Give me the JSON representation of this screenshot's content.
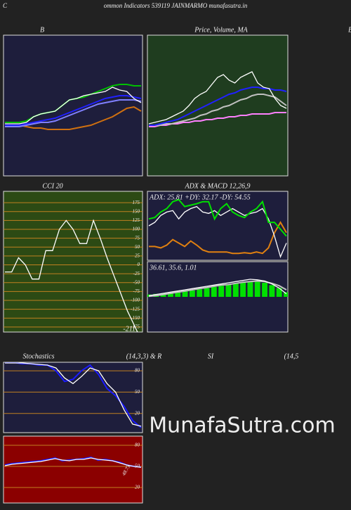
{
  "header": {
    "corner": "C",
    "page_title": "ommon  Indicators 539119 JAINMARMO munafasutra.in",
    "right_edge": "B",
    "watermark": "MunafaSutra.com"
  },
  "chart_data": [
    {
      "type": "line",
      "title": "B",
      "ylim": [
        0,
        100
      ],
      "series": [
        {
          "color": "#00c000",
          "values": [
            38,
            38,
            38,
            39,
            42,
            44,
            45,
            46,
            50,
            54,
            55,
            56,
            58,
            60,
            62,
            64,
            65,
            65,
            64,
            64
          ]
        },
        {
          "color": "#d07010",
          "values": [
            36,
            36,
            36,
            35,
            34,
            34,
            33,
            33,
            33,
            33,
            34,
            35,
            36,
            38,
            40,
            42,
            45,
            48,
            49,
            46
          ]
        },
        {
          "color": "#2020ff",
          "values": [
            36,
            36,
            36,
            37,
            38,
            39,
            40,
            41,
            43,
            45,
            47,
            49,
            51,
            53,
            55,
            56,
            57,
            57,
            56,
            55
          ]
        },
        {
          "color": "#8080ff",
          "values": [
            35,
            35,
            35,
            36,
            37,
            38,
            38,
            39,
            41,
            43,
            45,
            47,
            49,
            51,
            52,
            53,
            54,
            54,
            54,
            53
          ]
        },
        {
          "color": "#ffffff",
          "values": [
            37,
            37,
            37,
            38,
            42,
            44,
            45,
            46,
            50,
            54,
            55,
            57,
            58,
            59,
            60,
            63,
            61,
            60,
            55,
            52
          ]
        }
      ]
    },
    {
      "type": "line",
      "title": "Price, Volume, MA",
      "ylim": [
        0,
        100
      ],
      "series": [
        {
          "color": "#ff80ff",
          "values": [
            35,
            35,
            36,
            36,
            37,
            37,
            38,
            38,
            39,
            39,
            40,
            40,
            41,
            41,
            42,
            42,
            43,
            43,
            44,
            44,
            44,
            44,
            45,
            45,
            45
          ]
        },
        {
          "color": "#c0c0c0",
          "values": [
            36,
            36,
            36,
            37,
            37,
            38,
            39,
            40,
            41,
            43,
            44,
            46,
            47,
            49,
            50,
            52,
            54,
            55,
            57,
            58,
            58,
            57,
            56,
            53,
            50
          ]
        },
        {
          "color": "#2020ff",
          "values": [
            36,
            36,
            37,
            38,
            39,
            40,
            42,
            44,
            46,
            48,
            50,
            52,
            54,
            56,
            58,
            59,
            61,
            62,
            63,
            63,
            62,
            62,
            61,
            61,
            60
          ]
        },
        {
          "color": "#ffffff",
          "values": [
            37,
            38,
            39,
            40,
            42,
            44,
            46,
            50,
            55,
            58,
            60,
            65,
            70,
            72,
            68,
            66,
            70,
            72,
            74,
            66,
            63,
            62,
            55,
            50,
            48
          ]
        }
      ]
    },
    {
      "type": "line",
      "title": "CCI 20",
      "ylim": [
        -189,
        207
      ],
      "yticks": [
        175,
        150,
        125,
        100,
        75,
        50,
        25,
        0,
        -25,
        -50,
        -75,
        -100,
        -125,
        -150,
        -175
      ],
      "annotation": -211,
      "series": [
        {
          "color": "#ffffff",
          "values": [
            -20,
            -20,
            20,
            0,
            -40,
            -40,
            40,
            40,
            100,
            125,
            100,
            60,
            60,
            125,
            75,
            20,
            -30,
            -80,
            -130,
            -170,
            -211
          ]
        }
      ]
    },
    {
      "type": "line",
      "title": "ADX  & MACD 12,26,9",
      "ylim": [
        0,
        100
      ],
      "annotation": "ADX: 25.81 +DY: 32.17 -DY: 54.55",
      "series": [
        {
          "color": "#e08010",
          "values": [
            20,
            20,
            18,
            22,
            30,
            25,
            20,
            28,
            22,
            15,
            12,
            12,
            12,
            12,
            10,
            10,
            11,
            10,
            12,
            10,
            18,
            40,
            55,
            40
          ]
        },
        {
          "color": "#ffffff",
          "values": [
            50,
            55,
            65,
            70,
            72,
            60,
            70,
            75,
            78,
            70,
            68,
            72,
            65,
            70,
            75,
            70,
            65,
            68,
            70,
            75,
            60,
            35,
            5,
            25
          ]
        },
        {
          "color": "#00e000",
          "values": [
            60,
            62,
            70,
            75,
            85,
            88,
            78,
            80,
            82,
            85,
            85,
            60,
            75,
            82,
            70,
            65,
            62,
            70,
            75,
            85,
            55,
            55,
            45,
            35
          ]
        }
      ]
    },
    {
      "type": "macd",
      "ylim": [
        -60,
        60
      ],
      "annotation": "36.61, 35.6, 1.01",
      "bars": {
        "color": "#00e000",
        "values": [
          4,
          5,
          6,
          7,
          8,
          10,
          11,
          13,
          15,
          17,
          19,
          21,
          23,
          25,
          27,
          26,
          24,
          20,
          15,
          8
        ]
      },
      "series": [
        {
          "color": "#c0c0c0",
          "values": [
            1,
            2,
            4,
            6,
            8,
            10,
            12,
            14,
            16,
            18,
            20,
            21,
            23,
            25,
            26,
            27,
            26,
            23,
            19,
            12
          ]
        },
        {
          "color": "#ffffff",
          "values": [
            2,
            4,
            6,
            8,
            10,
            12,
            14,
            16,
            18,
            20,
            22,
            24,
            26,
            28,
            30,
            29,
            27,
            22,
            15,
            5
          ]
        }
      ]
    },
    {
      "type": "line",
      "title": "Stochastics",
      "subtitle": "(14,3,3) & R",
      "ylim": [
        -7,
        92
      ],
      "yticks": [
        80,
        50,
        20
      ],
      "series": [
        {
          "color": "#1a1aff",
          "values": [
            92,
            92,
            90,
            90,
            88,
            88,
            80,
            65,
            68,
            80,
            88,
            75,
            55,
            45,
            30,
            10,
            0
          ]
        },
        {
          "color": "#ffffff",
          "values": [
            91,
            91,
            91,
            90,
            89,
            88,
            84,
            70,
            62,
            72,
            84,
            80,
            62,
            50,
            25,
            5,
            2
          ]
        }
      ]
    },
    {
      "type": "line",
      "title": "SI",
      "subtitle": "(14,5",
      "ylim": [
        -2,
        93
      ],
      "yticks": [
        80,
        50,
        20
      ],
      "annotation": 48.73,
      "series": [
        {
          "color": "#1a1aff",
          "values": [
            52,
            54,
            55,
            56,
            57,
            58,
            60,
            62,
            58,
            59,
            60,
            61,
            63,
            59,
            60,
            58,
            56,
            52,
            50,
            49
          ]
        },
        {
          "color": "#ffffff",
          "values": [
            51,
            53,
            54,
            55,
            56,
            57,
            59,
            61,
            59,
            58,
            60,
            60,
            62,
            60,
            59,
            58,
            55,
            52,
            50,
            48.73
          ]
        }
      ]
    }
  ]
}
